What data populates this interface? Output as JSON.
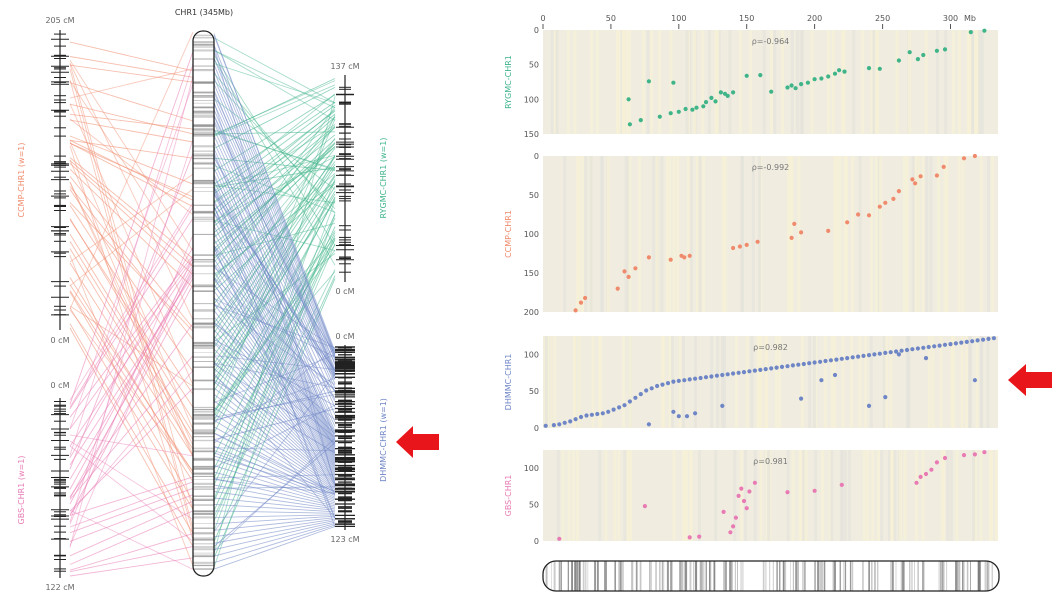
{
  "colors": {
    "ccmp": "#f08a6c",
    "gbs": "#e97bb4",
    "rygmc": "#3fb489",
    "dhmmc": "#6f86c6",
    "arrow": "#e8161b",
    "panel_bg": "#f0ede0",
    "axis_text": "#555555"
  },
  "left": {
    "chromosome_title": "CHR1 (345Mb)",
    "ccmp_map": {
      "top_label": "205 cM",
      "bottom_label": "0 cM",
      "side_label": "CCMP-CHR1 (w=1)"
    },
    "gbs_map": {
      "top_label": "0 cM",
      "bottom_label": "122 cM",
      "side_label": "GBS-CHR1 (w=1)"
    },
    "rygmc_map": {
      "top_label": "137 cM",
      "bottom_label": "0 cM",
      "side_label": "RYGMC-CHR1 (w=1)"
    },
    "dhmmc_map": {
      "top_label": "0 cM",
      "bottom_label": "123 cM",
      "side_label": "DHMMC-CHR1 (w=1)"
    }
  },
  "chart_data": [
    {
      "type": "scatter",
      "ylabel": "RYGMC-CHR1",
      "annotation": "ρ=-0.964",
      "xlim": [
        0,
        335
      ],
      "ylim": [
        150,
        0
      ],
      "yticks": [
        0,
        50,
        100,
        150
      ],
      "xticks": [
        0,
        50,
        100,
        150,
        200,
        250,
        300
      ],
      "xaxis_unit": "Mb",
      "x": [
        63,
        64,
        72,
        78,
        86,
        94,
        96,
        100,
        105,
        110,
        113,
        118,
        120,
        124,
        127,
        131,
        134,
        136,
        140,
        150,
        160,
        168,
        180,
        183,
        186,
        190,
        195,
        200,
        205,
        210,
        215,
        218,
        222,
        240,
        248,
        262,
        270,
        276,
        280,
        290,
        296,
        315,
        325
      ],
      "y": [
        100,
        136,
        130,
        74,
        125,
        120,
        76,
        118,
        114,
        115,
        112,
        110,
        104,
        98,
        103,
        90,
        92,
        95,
        90,
        66,
        65,
        89,
        83,
        80,
        84,
        78,
        76,
        71,
        70,
        67,
        63,
        58,
        60,
        55,
        56,
        44,
        32,
        42,
        36,
        30,
        28,
        3,
        1
      ]
    },
    {
      "type": "scatter",
      "ylabel": "CCMP-CHR1",
      "annotation": "ρ=-0.992",
      "xlim": [
        0,
        335
      ],
      "ylim": [
        200,
        0
      ],
      "yticks": [
        0,
        50,
        100,
        150,
        200
      ],
      "x": [
        24,
        28,
        31,
        55,
        60,
        63,
        68,
        78,
        94,
        102,
        104,
        108,
        140,
        145,
        150,
        158,
        183,
        185,
        190,
        210,
        224,
        232,
        240,
        248,
        252,
        258,
        262,
        272,
        274,
        278,
        290,
        295,
        310,
        318
      ],
      "y": [
        198,
        188,
        182,
        170,
        148,
        155,
        144,
        130,
        133,
        128,
        130,
        128,
        118,
        116,
        114,
        110,
        105,
        87,
        98,
        96,
        85,
        75,
        76,
        65,
        60,
        55,
        45,
        30,
        35,
        26,
        25,
        14,
        3,
        0
      ]
    },
    {
      "type": "scatter",
      "ylabel": "DHMMC-CHR1",
      "annotation": "ρ=0.982",
      "xlim": [
        0,
        335
      ],
      "ylim": [
        0,
        125
      ],
      "yticks": [
        0,
        50,
        100
      ],
      "x": [
        2,
        8,
        12,
        16,
        20,
        24,
        28,
        32,
        36,
        40,
        44,
        48,
        52,
        56,
        60,
        64,
        68,
        72,
        76,
        80,
        84,
        88,
        92,
        96,
        100,
        104,
        108,
        112,
        116,
        120,
        124,
        128,
        132,
        136,
        140,
        144,
        148,
        152,
        156,
        160,
        164,
        168,
        172,
        176,
        180,
        184,
        188,
        192,
        196,
        200,
        204,
        208,
        212,
        216,
        220,
        224,
        228,
        232,
        236,
        240,
        244,
        248,
        252,
        256,
        260,
        264,
        268,
        272,
        276,
        280,
        284,
        288,
        292,
        296,
        300,
        304,
        308,
        312,
        316,
        320,
        324,
        328,
        332,
        78,
        96,
        100,
        106,
        112,
        132,
        190,
        205,
        215,
        240,
        252,
        262,
        282,
        318
      ],
      "y": [
        3,
        4,
        5,
        7,
        9,
        12,
        15,
        17,
        18,
        19,
        20,
        22,
        25,
        28,
        31,
        36,
        41,
        46,
        51,
        54,
        57,
        59,
        61,
        63,
        64,
        65,
        66,
        67,
        68,
        69,
        70,
        71,
        72,
        73,
        74,
        75,
        76,
        77,
        78,
        79,
        80,
        81,
        82,
        83,
        84,
        85,
        86,
        87,
        88,
        89,
        90,
        91,
        92,
        93,
        94,
        95,
        96,
        97,
        98,
        99,
        100,
        101,
        102,
        103,
        104,
        105,
        106,
        107,
        108,
        109,
        110,
        111,
        112,
        113,
        114,
        115,
        116,
        117,
        118,
        119,
        120,
        121,
        122,
        5,
        22,
        16,
        16,
        20,
        30,
        40,
        65,
        72,
        30,
        42,
        100,
        95,
        65
      ]
    },
    {
      "type": "scatter",
      "ylabel": "GBS-CHR1",
      "annotation": "ρ=0.981",
      "xlim": [
        0,
        335
      ],
      "ylim": [
        0,
        125
      ],
      "yticks": [
        0,
        50,
        100
      ],
      "x": [
        12,
        75,
        108,
        115,
        133,
        138,
        140,
        142,
        144,
        146,
        148,
        150,
        152,
        156,
        180,
        200,
        220,
        275,
        278,
        282,
        286,
        290,
        296,
        310,
        318,
        325
      ],
      "y": [
        3,
        48,
        5,
        6,
        40,
        12,
        20,
        32,
        62,
        72,
        55,
        45,
        68,
        80,
        67,
        69,
        77,
        80,
        88,
        92,
        98,
        108,
        114,
        118,
        119,
        122
      ]
    }
  ]
}
